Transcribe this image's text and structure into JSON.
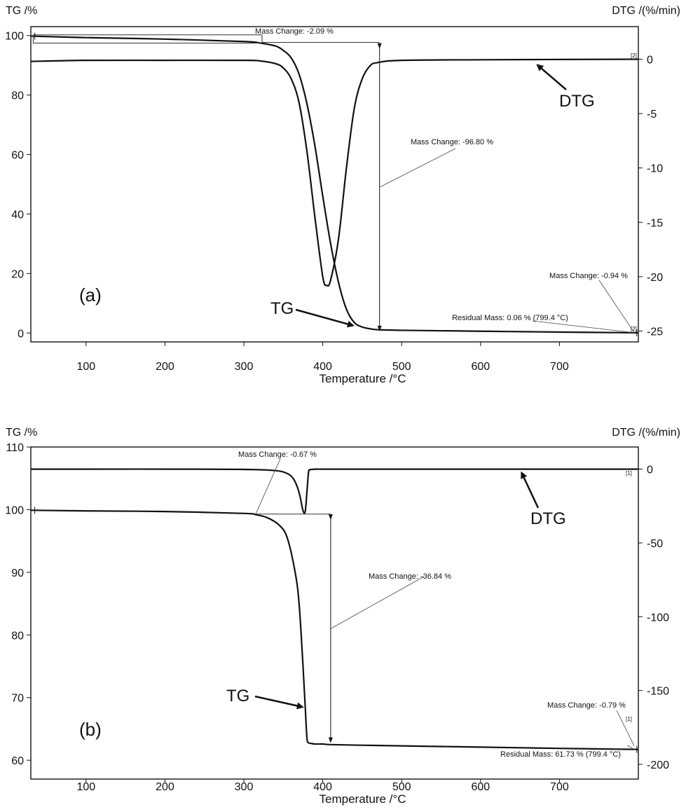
{
  "chart_data": [
    {
      "type": "line",
      "panel_label": "(a)",
      "xlabel": "Temperature /°C",
      "ylabel_left": "TG /%",
      "ylabel_right": "DTG /(%/min)",
      "xlim": [
        30,
        800
      ],
      "ylim_left": [
        -3,
        103
      ],
      "ylim_right": [
        -26,
        3
      ],
      "x_ticks": [
        100,
        200,
        300,
        400,
        500,
        600,
        700
      ],
      "y_ticks_left": [
        0,
        20,
        40,
        60,
        80,
        100
      ],
      "y_ticks_right": [
        0,
        -5,
        -10,
        -15,
        -20,
        -25
      ],
      "series": [
        {
          "name": "TG",
          "axis": "left",
          "x": [
            30,
            100,
            200,
            300,
            320,
            340,
            350,
            360,
            370,
            380,
            390,
            400,
            410,
            420,
            430,
            440,
            450,
            460,
            470,
            500,
            600,
            700,
            800
          ],
          "y": [
            99.8,
            99.3,
            98.8,
            98.0,
            97.5,
            96.5,
            95.0,
            92.5,
            87.0,
            77.0,
            63.0,
            46.0,
            30.0,
            17.0,
            8.0,
            3.5,
            2.0,
            1.4,
            1.1,
            0.9,
            0.6,
            0.3,
            0.06
          ]
        },
        {
          "name": "DTG",
          "axis": "right",
          "x": [
            30,
            100,
            200,
            300,
            320,
            340,
            350,
            360,
            370,
            380,
            390,
            400,
            405,
            410,
            420,
            430,
            440,
            450,
            460,
            470,
            500,
            600,
            700,
            800
          ],
          "y": [
            -0.2,
            -0.1,
            -0.1,
            -0.1,
            -0.15,
            -0.4,
            -0.8,
            -1.8,
            -4.0,
            -8.5,
            -14.5,
            -20.0,
            -20.8,
            -20.3,
            -16.5,
            -10.0,
            -4.5,
            -1.8,
            -0.6,
            -0.3,
            -0.1,
            -0.05,
            -0.02,
            0.0
          ]
        }
      ],
      "annotations": {
        "mass_change_1": "Mass Change: -2.09 %",
        "mass_change_2": "Mass Change: -96.80 %",
        "mass_change_3": "Mass Change: -0.94 %",
        "residual_mass": "Residual Mass: 0.06 % (799.4 °C)",
        "tg_label": "TG",
        "dtg_label": "DTG",
        "marker": "[2]"
      }
    },
    {
      "type": "line",
      "panel_label": "(b)",
      "xlabel": "Temperature /°C",
      "ylabel_left": "TG /%",
      "ylabel_right": "DTG /(%/min)",
      "xlim": [
        30,
        800
      ],
      "ylim_left": [
        57,
        110
      ],
      "ylim_right": [
        -210,
        15
      ],
      "x_ticks": [
        100,
        200,
        300,
        400,
        500,
        600,
        700
      ],
      "y_ticks_left": [
        60,
        70,
        80,
        90,
        100,
        110
      ],
      "y_ticks_right": [
        0,
        -50,
        -100,
        -150,
        -200
      ],
      "series": [
        {
          "name": "TG",
          "axis": "left",
          "x": [
            30,
            100,
            200,
            300,
            315,
            330,
            345,
            355,
            365,
            370,
            375,
            378,
            380,
            382,
            385,
            390,
            400,
            410,
            450,
            500,
            600,
            700,
            800
          ],
          "y": [
            99.9,
            99.8,
            99.7,
            99.4,
            99.2,
            98.7,
            97.5,
            95.5,
            90.0,
            85.0,
            75.0,
            68.0,
            63.5,
            62.8,
            62.7,
            62.6,
            62.6,
            62.5,
            62.4,
            62.3,
            62.1,
            61.9,
            61.73
          ]
        },
        {
          "name": "DTG",
          "axis": "right",
          "x": [
            30,
            100,
            200,
            300,
            340,
            355,
            362,
            367,
            371,
            374,
            376,
            378,
            380,
            382,
            384,
            390,
            400,
            500,
            600,
            700,
            800
          ],
          "y": [
            0,
            0,
            0,
            -0.2,
            -1.0,
            -3.0,
            -6.0,
            -11.0,
            -18.0,
            -26.0,
            -29.5,
            -28.0,
            -15.0,
            -2.0,
            -0.4,
            -0.1,
            0,
            0,
            0,
            0,
            0
          ]
        }
      ],
      "annotations": {
        "mass_change_1": "Mass Change: -0.67 %",
        "mass_change_2": "Mass Change: -36.84 %",
        "mass_change_3": "Mass Change: -0.79 %",
        "residual_mass": "Residual Mass: 61.73 % (799.4 °C)",
        "tg_label": "TG",
        "dtg_label": "DTG",
        "marker": "[1]"
      }
    }
  ]
}
